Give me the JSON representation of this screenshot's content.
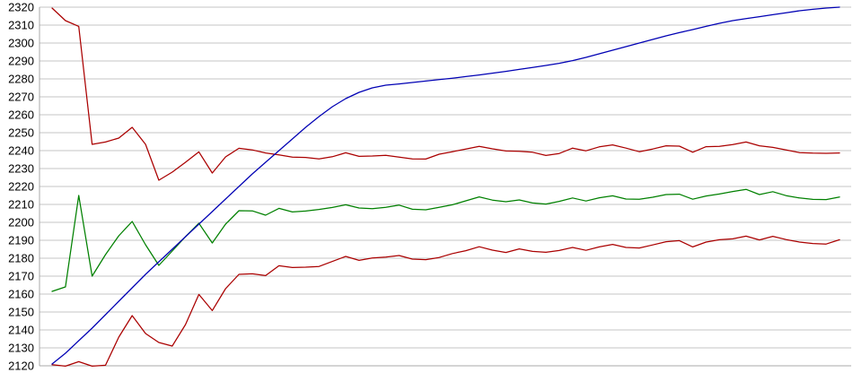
{
  "chart_data": {
    "type": "line",
    "title": "",
    "legend": "none",
    "grid": "horizontal",
    "y_axis": {
      "min": 2120,
      "max": 2320,
      "tick_step": 10,
      "tick_labels": [
        "2320",
        "2310",
        "2300",
        "2290",
        "2280",
        "2270",
        "2260",
        "2250",
        "2240",
        "2230",
        "2220",
        "2210",
        "2200",
        "2190",
        "2180",
        "2170",
        "2160",
        "2150",
        "2140",
        "2130",
        "2120"
      ]
    },
    "x_axis": {
      "tick_labels": [],
      "n_points": 60
    },
    "colors": {
      "background": "#ffffff",
      "grid": "#c6c6c6",
      "axis": "#a8a8a8",
      "label": "#000000",
      "blue": "#0000b4",
      "green": "#008000",
      "dark_red": "#aa0000"
    },
    "series": [
      {
        "name": "lower-dark-red-line",
        "color": "#aa0000",
        "values": [
          2120.6,
          2119.8,
          2122.3,
          2119.8,
          2120.3,
          2136,
          2148,
          2138,
          2133,
          2131,
          2143,
          2159.8,
          2150.8,
          2163,
          2171,
          2171.3,
          2170.3,
          2175.8,
          2174.8,
          2175,
          2175.4,
          2178.2,
          2181,
          2178.8,
          2180.1,
          2180.6,
          2181.5,
          2179.5,
          2179.2,
          2180.4,
          2182.6,
          2184.2,
          2186.4,
          2184.5,
          2183.2,
          2185.2,
          2183.8,
          2183.3,
          2184.3,
          2186,
          2184.4,
          2186.3,
          2187.7,
          2186,
          2185.7,
          2187.4,
          2189.2,
          2189.8,
          2186.3,
          2189,
          2190.3,
          2190.8,
          2192.3,
          2190.2,
          2192.2,
          2190.4,
          2189,
          2188.2,
          2187.9,
          2190.3
        ]
      },
      {
        "name": "green-line",
        "color": "#008000",
        "values": [
          2161.5,
          2164,
          2215,
          2170,
          2182,
          2192.5,
          2200.5,
          2187.5,
          2176,
          2184,
          2192,
          2199.5,
          2188.5,
          2199,
          2206.5,
          2206.4,
          2204,
          2207.8,
          2205.8,
          2206.3,
          2207.2,
          2208.3,
          2209.8,
          2208,
          2207.6,
          2208.4,
          2209.6,
          2207.3,
          2207,
          2208.4,
          2209.8,
          2212,
          2214.2,
          2212.4,
          2211.5,
          2212.5,
          2210.8,
          2210.2,
          2211.7,
          2213.6,
          2211.9,
          2213.7,
          2214.8,
          2213,
          2212.9,
          2214,
          2215.5,
          2215.7,
          2212.9,
          2214.7,
          2215.8,
          2217.2,
          2218.4,
          2215.5,
          2217.1,
          2214.9,
          2213.6,
          2212.8,
          2212.7,
          2214.1
        ]
      },
      {
        "name": "upper-dark-red-line",
        "color": "#aa0000",
        "values": [
          2319.5,
          2312.5,
          2309.3,
          2243.5,
          2244.8,
          2247,
          2253,
          2243.5,
          2223.5,
          2228,
          2233.5,
          2239.3,
          2227.5,
          2236.5,
          2241.3,
          2240.4,
          2238.7,
          2237.6,
          2236.4,
          2236.2,
          2235.4,
          2236.6,
          2238.8,
          2236.8,
          2237,
          2237.4,
          2236.4,
          2235.4,
          2235.3,
          2238,
          2239.4,
          2240.9,
          2242.4,
          2241,
          2239.8,
          2239.6,
          2239.1,
          2237.3,
          2238.4,
          2241.4,
          2239.9,
          2242.1,
          2243.2,
          2241.4,
          2239.4,
          2240.9,
          2242.7,
          2242.5,
          2239.1,
          2242.2,
          2242.4,
          2243.4,
          2244.8,
          2242.7,
          2241.8,
          2240.4,
          2238.9,
          2238.6,
          2238.5,
          2238.7
        ]
      },
      {
        "name": "blue-line",
        "color": "#0000b4",
        "values": [
          2121,
          2127,
          2134,
          2141,
          2148.5,
          2156,
          2163.5,
          2171,
          2178,
          2185,
          2192,
          2199,
          2206,
          2213,
          2220,
          2227,
          2233.5,
          2240,
          2246.5,
          2253,
          2259,
          2264.5,
          2269,
          2272.5,
          2275,
          2276.5,
          2277.2,
          2278,
          2278.8,
          2279.6,
          2280.4,
          2281.3,
          2282.2,
          2283.2,
          2284.2,
          2285.3,
          2286.4,
          2287.5,
          2288.7,
          2290.2,
          2292,
          2294,
          2296,
          2298,
          2300,
          2302,
          2304,
          2305.8,
          2307.5,
          2309.3,
          2311,
          2312.5,
          2313.6,
          2314.7,
          2315.8,
          2316.9,
          2318,
          2318.8,
          2319.5,
          2320
        ]
      }
    ]
  }
}
